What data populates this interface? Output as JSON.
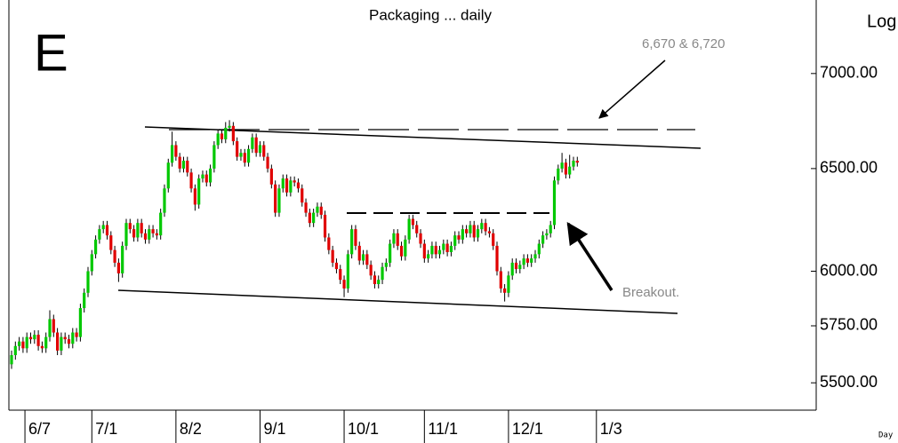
{
  "chart_data": {
    "type": "candlestick",
    "title": "Packaging ... daily",
    "panel_label": "E",
    "y_axis_label": "Log",
    "x_axis_label": "Day",
    "annotations": [
      "6,670 & 6,720",
      "Breakout."
    ],
    "log_scale": true,
    "up_color": "#00c800",
    "down_color": "#e00000",
    "ylim": [
      5384,
      7413
    ],
    "yticks": [
      {
        "value": 5500,
        "label": "5500.00"
      },
      {
        "value": 5750,
        "label": "5750.00"
      },
      {
        "value": 6000,
        "label": "6000.00"
      },
      {
        "value": 6500,
        "label": "6500.00"
      },
      {
        "value": 7000,
        "label": "7000.00"
      }
    ],
    "xlim": [
      -0.7,
      210.5
    ],
    "xticks": [
      {
        "value": 3.5,
        "label": "6/7"
      },
      {
        "value": 21,
        "label": "7/1"
      },
      {
        "value": 43,
        "label": "8/2"
      },
      {
        "value": 65,
        "label": "9/1"
      },
      {
        "value": 87,
        "label": "10/1"
      },
      {
        "value": 108,
        "label": "11/1"
      },
      {
        "value": 130,
        "label": "12/1"
      },
      {
        "value": 153,
        "label": "1/3"
      }
    ],
    "open": [
      5580,
      5620,
      5660,
      5680,
      5650,
      5700,
      5690,
      5710,
      5660,
      5650,
      5700,
      5780,
      5720,
      5640,
      5700,
      5690,
      5670,
      5720,
      5700,
      5830,
      5900,
      6000,
      6080,
      6150,
      6200,
      6220,
      6170,
      6100,
      6040,
      5990,
      6120,
      6230,
      6200,
      6160,
      6230,
      6180,
      6150,
      6200,
      6180,
      6170,
      6280,
      6400,
      6530,
      6620,
      6560,
      6500,
      6540,
      6480,
      6400,
      6320,
      6450,
      6470,
      6430,
      6500,
      6620,
      6680,
      6650,
      6710,
      6720,
      6640,
      6560,
      6580,
      6530,
      6600,
      6660,
      6580,
      6620,
      6560,
      6500,
      6420,
      6280,
      6400,
      6450,
      6380,
      6440,
      6430,
      6400,
      6330,
      6280,
      6230,
      6280,
      6310,
      6270,
      6160,
      6100,
      6040,
      6010,
      5960,
      5920,
      6080,
      6200,
      6120,
      6050,
      6080,
      6030,
      5980,
      5940,
      5960,
      6020,
      6040,
      6130,
      6180,
      6120,
      6070,
      6150,
      6250,
      6220,
      6180,
      6130,
      6060,
      6080,
      6120,
      6080,
      6100,
      6130,
      6090,
      6120,
      6170,
      6150,
      6200,
      6180,
      6220,
      6160,
      6200,
      6230,
      6190,
      6180,
      6120,
      6000,
      5920,
      5900,
      5980,
      6040,
      6010,
      6030,
      6060,
      6040,
      6060,
      6080,
      6130,
      6170,
      6180,
      6220,
      6440,
      6500,
      6530,
      6470,
      6510,
      6540
    ],
    "high": [
      5640,
      5680,
      5700,
      5700,
      5720,
      5720,
      5730,
      5730,
      5680,
      5720,
      5820,
      5800,
      5740,
      5720,
      5720,
      5710,
      5740,
      5740,
      5850,
      5920,
      6020,
      6100,
      6170,
      6220,
      6240,
      6240,
      6190,
      6120,
      6060,
      6140,
      6250,
      6250,
      6220,
      6250,
      6250,
      6200,
      6220,
      6220,
      6200,
      6300,
      6420,
      6550,
      6690,
      6640,
      6580,
      6560,
      6560,
      6500,
      6420,
      6470,
      6490,
      6490,
      6520,
      6640,
      6700,
      6700,
      6740,
      6750,
      6740,
      6660,
      6600,
      6600,
      6620,
      6680,
      6680,
      6640,
      6640,
      6580,
      6520,
      6440,
      6420,
      6470,
      6470,
      6460,
      6460,
      6450,
      6420,
      6350,
      6300,
      6300,
      6330,
      6330,
      6290,
      6180,
      6120,
      6060,
      6030,
      5980,
      6100,
      6220,
      6220,
      6140,
      6100,
      6100,
      6050,
      6000,
      5980,
      6040,
      6060,
      6150,
      6200,
      6200,
      6140,
      6170,
      6270,
      6270,
      6240,
      6200,
      6150,
      6100,
      6140,
      6140,
      6120,
      6150,
      6150,
      6140,
      6190,
      6190,
      6220,
      6220,
      6240,
      6240,
      6220,
      6250,
      6250,
      6210,
      6200,
      6140,
      6020,
      5940,
      6000,
      6060,
      6060,
      6050,
      6080,
      6080,
      6080,
      6100,
      6150,
      6190,
      6200,
      6240,
      6460,
      6520,
      6580,
      6550,
      6570,
      6560,
      6560
    ],
    "low": [
      5560,
      5600,
      5640,
      5630,
      5630,
      5670,
      5670,
      5640,
      5630,
      5630,
      5680,
      5700,
      5620,
      5620,
      5670,
      5650,
      5650,
      5680,
      5680,
      5810,
      5880,
      5980,
      6060,
      6130,
      6180,
      6150,
      6080,
      6020,
      5950,
      5970,
      6100,
      6180,
      6140,
      6140,
      6160,
      6130,
      6130,
      6160,
      6150,
      6150,
      6260,
      6380,
      6510,
      6540,
      6480,
      6480,
      6460,
      6380,
      6290,
      6300,
      6430,
      6410,
      6410,
      6480,
      6600,
      6630,
      6630,
      6690,
      6620,
      6540,
      6540,
      6510,
      6510,
      6580,
      6560,
      6560,
      6540,
      6480,
      6400,
      6260,
      6260,
      6380,
      6360,
      6360,
      6410,
      6380,
      6310,
      6260,
      6210,
      6210,
      6260,
      6250,
      6140,
      6080,
      6020,
      5990,
      5940,
      5880,
      5900,
      6060,
      6100,
      6030,
      6030,
      6010,
      5960,
      5920,
      5920,
      5940,
      6000,
      6020,
      6110,
      6100,
      6050,
      6050,
      6130,
      6200,
      6160,
      6110,
      6040,
      6040,
      6060,
      6060,
      6060,
      6080,
      6070,
      6070,
      6100,
      6130,
      6130,
      6160,
      6160,
      6140,
      6140,
      6180,
      6170,
      6160,
      6100,
      5980,
      5900,
      5860,
      5880,
      5960,
      5990,
      5990,
      6010,
      6020,
      6020,
      6040,
      6060,
      6110,
      6150,
      6160,
      6200,
      6420,
      6480,
      6450,
      6450,
      6490,
      6510
    ],
    "close": [
      5620,
      5660,
      5680,
      5650,
      5700,
      5690,
      5710,
      5660,
      5650,
      5700,
      5780,
      5720,
      5640,
      5700,
      5690,
      5670,
      5720,
      5700,
      5830,
      5900,
      6000,
      6080,
      6150,
      6200,
      6220,
      6170,
      6100,
      6040,
      5990,
      6120,
      6230,
      6200,
      6160,
      6230,
      6180,
      6150,
      6200,
      6180,
      6170,
      6280,
      6400,
      6530,
      6620,
      6560,
      6500,
      6540,
      6480,
      6400,
      6320,
      6450,
      6470,
      6430,
      6500,
      6620,
      6680,
      6650,
      6710,
      6720,
      6640,
      6560,
      6580,
      6530,
      6600,
      6660,
      6580,
      6620,
      6560,
      6500,
      6420,
      6280,
      6400,
      6450,
      6380,
      6440,
      6430,
      6400,
      6330,
      6280,
      6230,
      6280,
      6310,
      6270,
      6160,
      6100,
      6040,
      6010,
      5960,
      5920,
      6080,
      6200,
      6120,
      6050,
      6080,
      6030,
      5980,
      5940,
      5960,
      6020,
      6040,
      6130,
      6180,
      6120,
      6070,
      6150,
      6250,
      6220,
      6180,
      6130,
      6060,
      6080,
      6120,
      6080,
      6100,
      6130,
      6090,
      6120,
      6170,
      6150,
      6200,
      6180,
      6220,
      6160,
      6200,
      6230,
      6190,
      6180,
      6120,
      6000,
      5920,
      5900,
      5980,
      6040,
      6010,
      6030,
      6060,
      6040,
      6060,
      6080,
      6130,
      6170,
      6180,
      6220,
      6440,
      6500,
      6530,
      6470,
      6510,
      6540,
      6530
    ]
  }
}
